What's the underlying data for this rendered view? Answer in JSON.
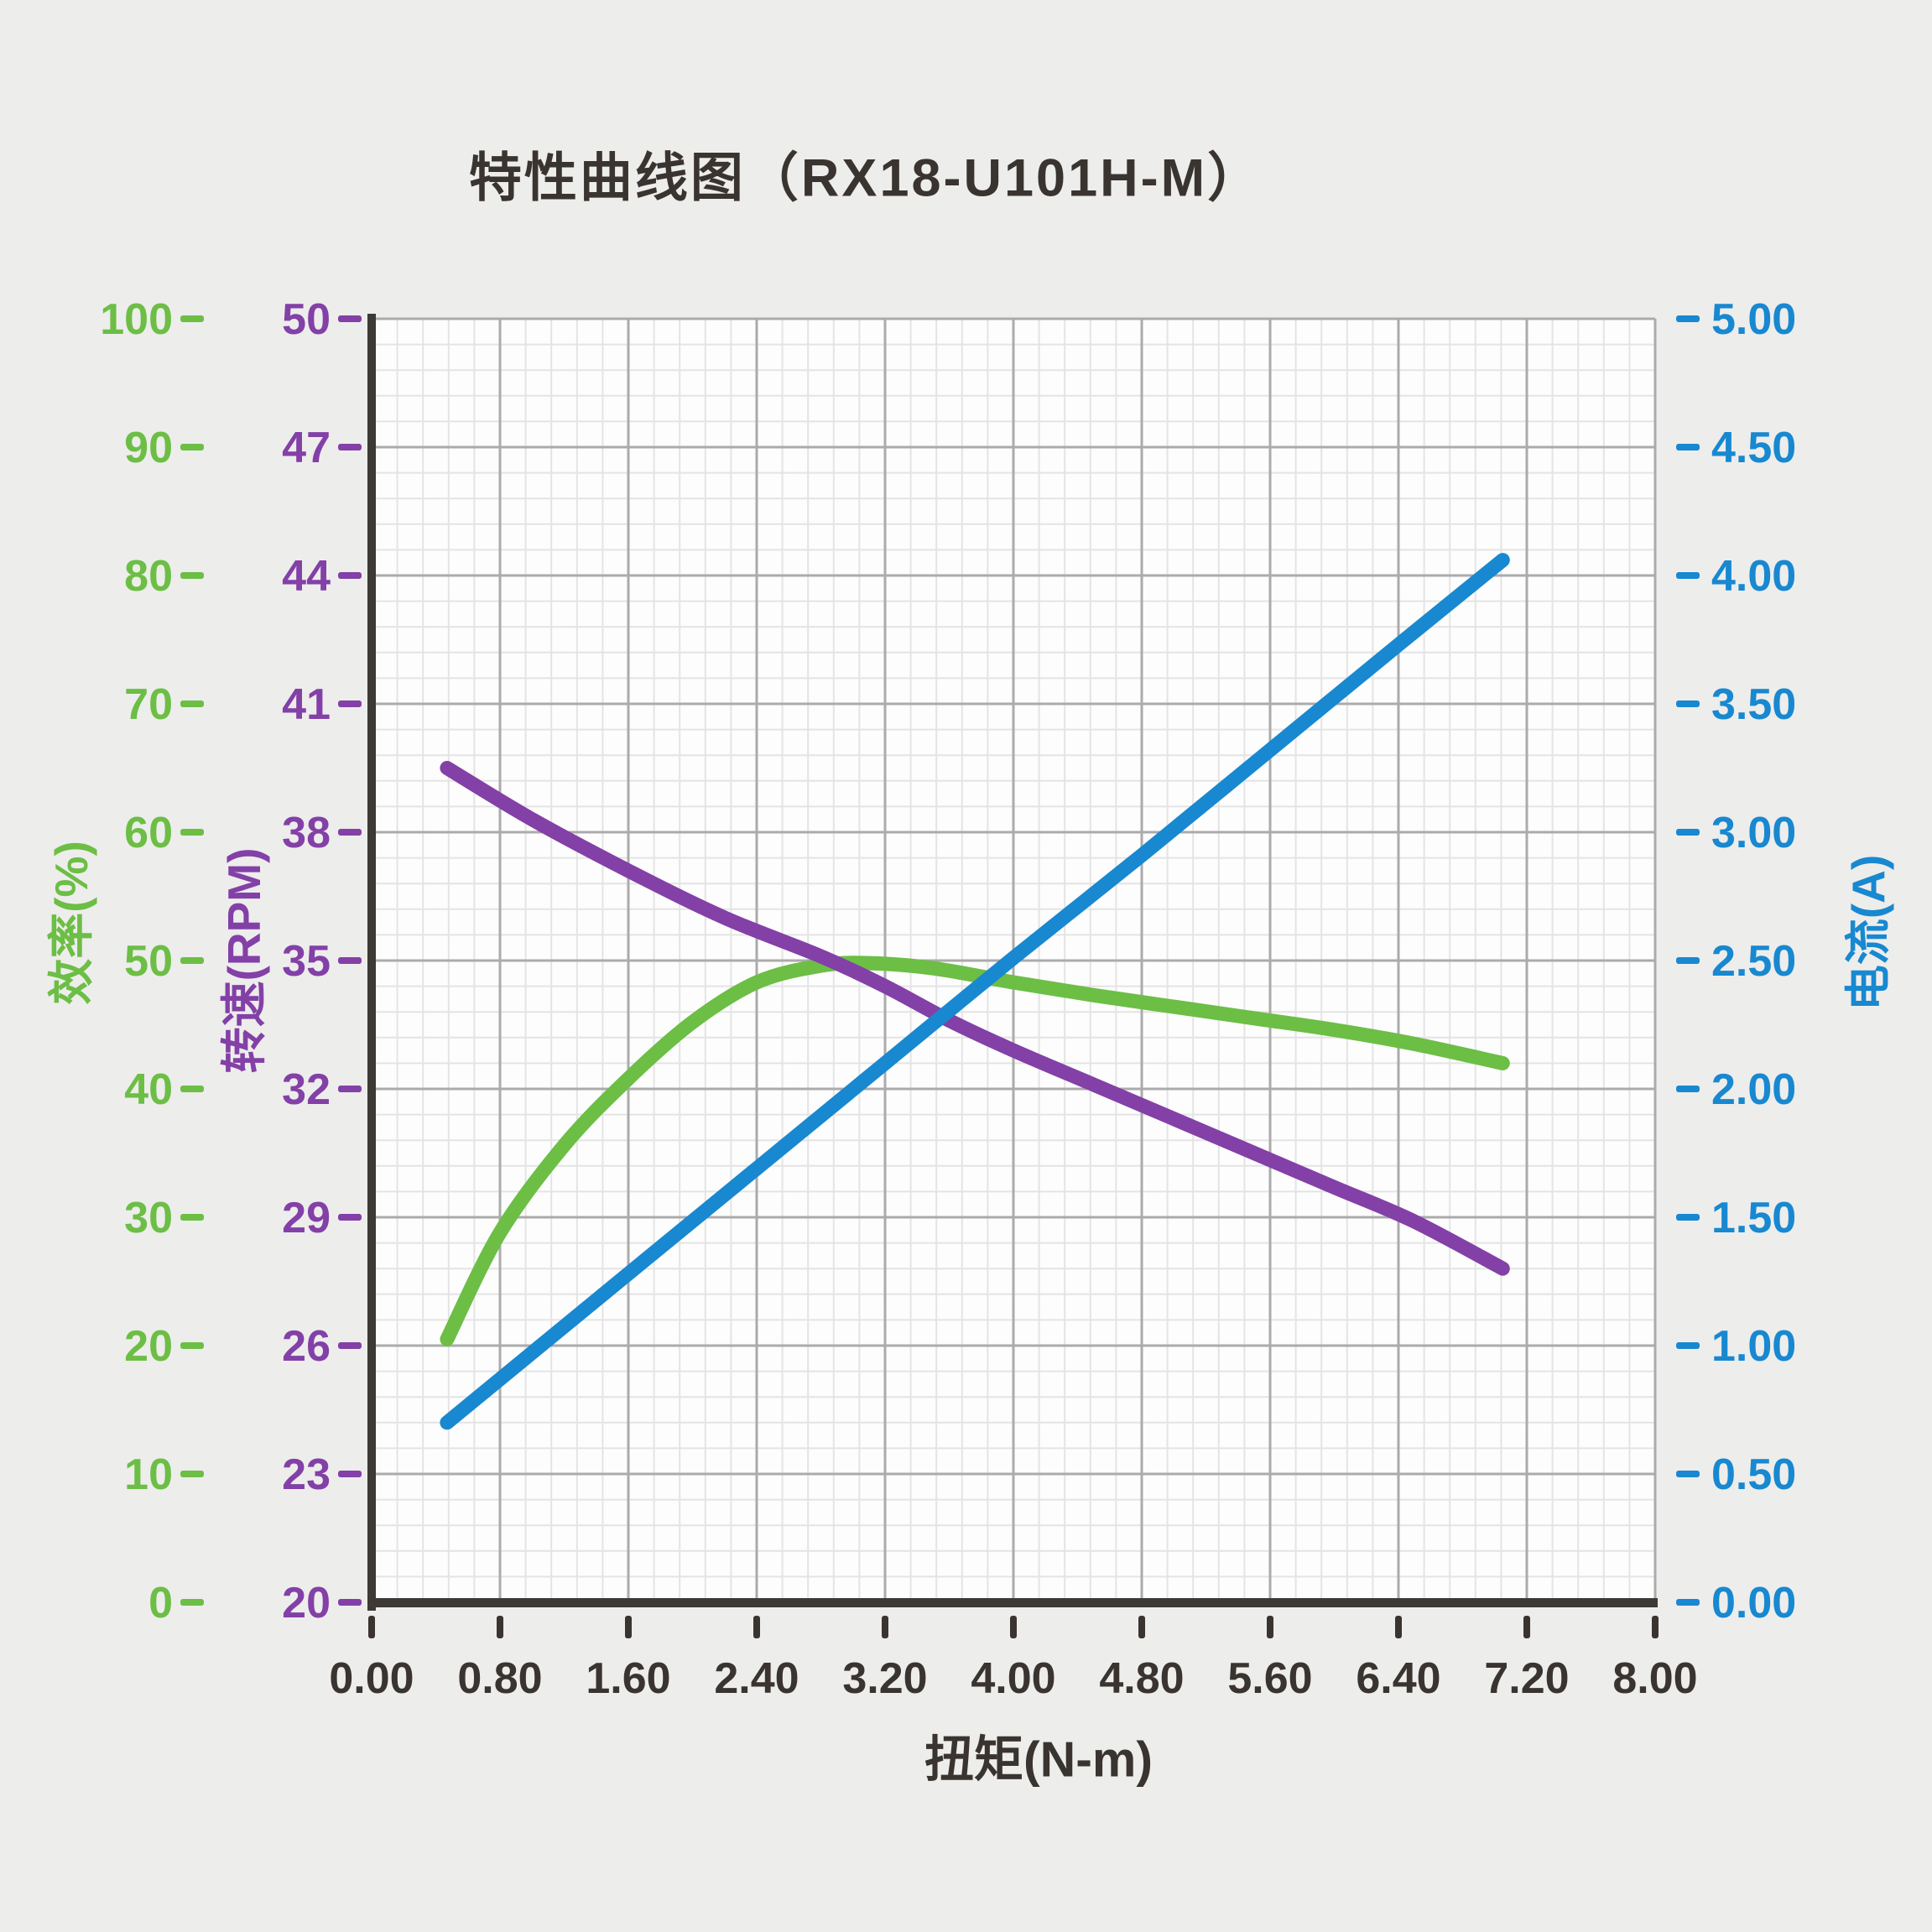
{
  "title": "特性曲线图（RX18-U101H-M）",
  "chart_data": {
    "type": "line",
    "title": "特性曲线图（RX18-U101H-M）",
    "xlabel": "扭矩(N-m)",
    "xlim": [
      0,
      8
    ],
    "x_tick_labels": [
      "0.00",
      "0.80",
      "1.60",
      "2.40",
      "3.20",
      "4.00",
      "4.80",
      "5.60",
      "6.40",
      "7.20",
      "8.00"
    ],
    "grid": {
      "x_majors": 10,
      "y_majors": 10,
      "minors_per_major": 5,
      "minor_color": "#E4E4E4",
      "major_color": "#ABABAB",
      "plot_bg": "#FDFDFD",
      "axis_color": "#3D3935",
      "tick_color": "#3A3431"
    },
    "axes": {
      "efficiency": {
        "label": "效率(%)",
        "color": "#6CBE45",
        "min": 0,
        "max": 100,
        "ticks": [
          "100",
          "90",
          "80",
          "70",
          "60",
          "50",
          "40",
          "30",
          "20",
          "10",
          "0"
        ]
      },
      "speed": {
        "label": "转速(RPM)",
        "color": "#8340A7",
        "min": 20,
        "max": 50,
        "ticks": [
          "50",
          "47",
          "44",
          "41",
          "38",
          "35",
          "32",
          "29",
          "26",
          "23",
          "20"
        ]
      },
      "current": {
        "label": "电流(A)",
        "color": "#1888D0",
        "min": 0,
        "max": 5,
        "ticks": [
          "5.00",
          "4.50",
          "4.00",
          "3.50",
          "3.00",
          "2.50",
          "2.00",
          "1.50",
          "1.00",
          "0.50",
          "0.00"
        ]
      }
    },
    "series": [
      {
        "key": "efficiency",
        "name": "效率",
        "axis": "efficiency",
        "color": "#6CBE45",
        "points": [
          [
            0.47,
            20.5
          ],
          [
            0.8,
            28.8
          ],
          [
            1.2,
            35.6
          ],
          [
            1.6,
            40.8
          ],
          [
            2.0,
            45.2
          ],
          [
            2.4,
            48.3
          ],
          [
            2.8,
            49.6
          ],
          [
            3.1,
            49.8
          ],
          [
            3.5,
            49.4
          ],
          [
            4.0,
            48.3
          ],
          [
            4.5,
            47.3
          ],
          [
            5.0,
            46.4
          ],
          [
            5.5,
            45.5
          ],
          [
            6.0,
            44.6
          ],
          [
            6.5,
            43.5
          ],
          [
            7.05,
            42.0
          ]
        ]
      },
      {
        "key": "speed",
        "name": "转速",
        "axis": "speed",
        "color": "#8340A7",
        "points": [
          [
            0.47,
            39.5
          ],
          [
            1.0,
            38.3
          ],
          [
            1.6,
            37.1
          ],
          [
            2.2,
            36.0
          ],
          [
            2.8,
            35.1
          ],
          [
            3.2,
            34.4
          ],
          [
            3.6,
            33.6
          ],
          [
            4.0,
            32.9
          ],
          [
            4.5,
            32.1
          ],
          [
            5.0,
            31.3
          ],
          [
            5.5,
            30.5
          ],
          [
            6.0,
            29.7
          ],
          [
            6.5,
            28.9
          ],
          [
            7.05,
            27.8
          ]
        ]
      },
      {
        "key": "current",
        "name": "电流",
        "axis": "current",
        "color": "#1888D0",
        "points": [
          [
            0.47,
            0.7
          ],
          [
            1.6,
            1.28
          ],
          [
            2.4,
            1.69
          ],
          [
            3.2,
            2.1
          ],
          [
            4.0,
            2.51
          ],
          [
            4.8,
            2.91
          ],
          [
            5.6,
            3.32
          ],
          [
            6.4,
            3.73
          ],
          [
            7.05,
            4.06
          ]
        ]
      }
    ]
  }
}
